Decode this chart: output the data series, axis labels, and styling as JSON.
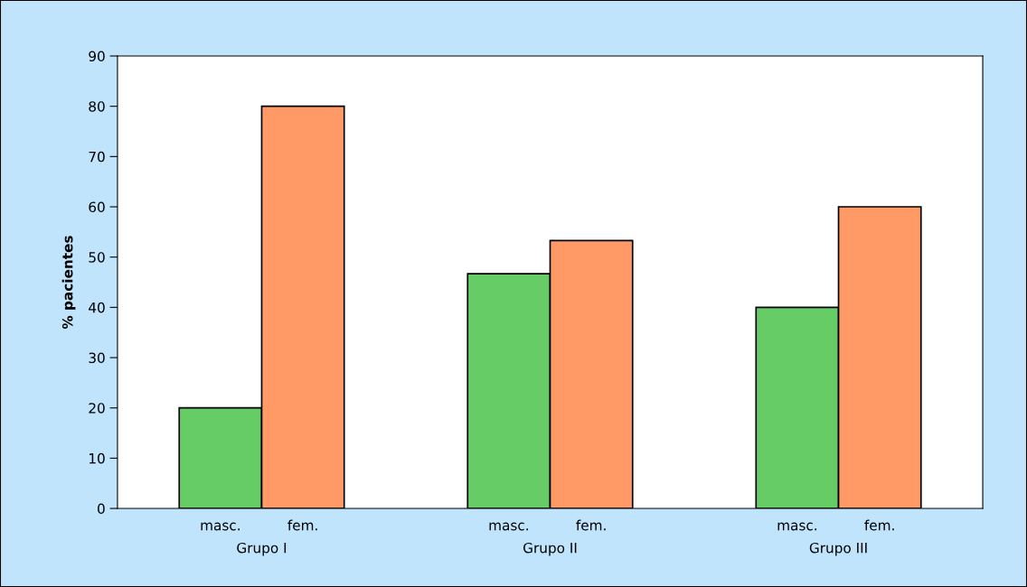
{
  "chart_data": {
    "type": "bar",
    "ylabel": "% pacientes",
    "categories": [
      "Grupo I",
      "Grupo II",
      "Grupo III"
    ],
    "series": [
      {
        "name": "masc.",
        "color": "#66cc66",
        "values": [
          20,
          46.7,
          40
        ]
      },
      {
        "name": "fem.",
        "color": "#ff9966",
        "values": [
          80,
          53.3,
          60
        ]
      }
    ],
    "ylim": [
      0,
      90
    ],
    "yticks": [
      0,
      10,
      20,
      30,
      40,
      50,
      60,
      70,
      80,
      90
    ],
    "grid": false,
    "legend": false
  }
}
